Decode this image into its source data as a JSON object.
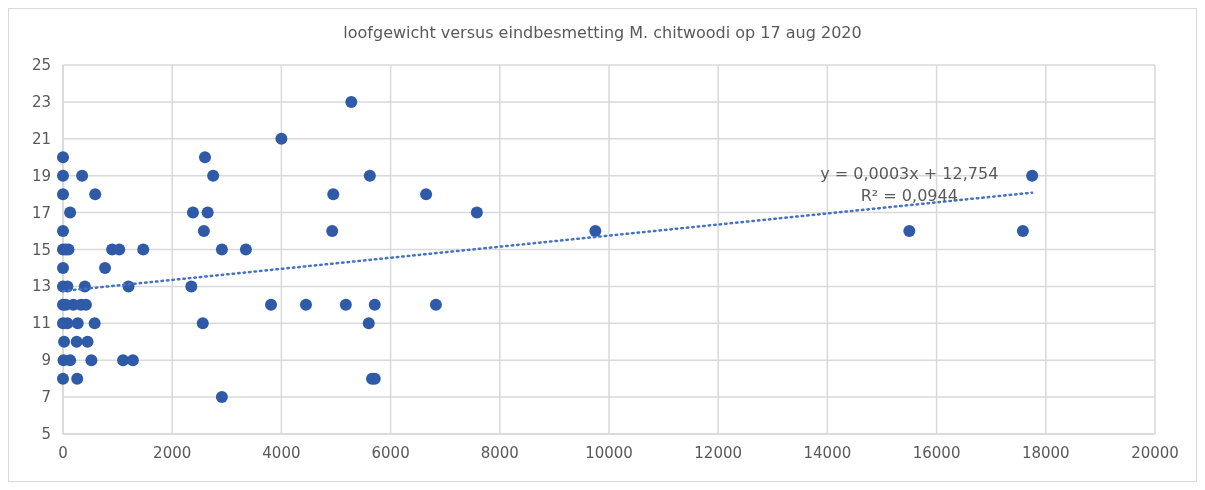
{
  "chart_data": {
    "type": "scatter",
    "title": "loofgewicht versus eindbesmetting M. chitwoodi op 17 aug 2020",
    "xlim": [
      0,
      20000
    ],
    "xticks": [
      0,
      2000,
      4000,
      6000,
      8000,
      10000,
      12000,
      14000,
      16000,
      18000,
      20000
    ],
    "ylim": [
      5,
      25
    ],
    "yticks": [
      5,
      7,
      9,
      11,
      13,
      15,
      17,
      19,
      21,
      23,
      25
    ],
    "grid": true,
    "marker": "circle",
    "series": [
      {
        "color": "#2f5aa8",
        "x": [
          0,
          0,
          350,
          0,
          590,
          130,
          0,
          0,
          50,
          100,
          900,
          1030,
          1470,
          0,
          770,
          0,
          80,
          400,
          1200,
          2350,
          0,
          50,
          190,
          330,
          420,
          0,
          80,
          270,
          580,
          2560,
          20,
          250,
          450,
          10,
          130,
          520,
          1100,
          1280,
          0,
          260,
          2600,
          2750,
          2380,
          2650,
          2580,
          2910,
          3350,
          2910,
          3810,
          4000,
          4450,
          4930,
          4950,
          5180,
          5280,
          5600,
          5620,
          5660,
          5710,
          5710,
          6650,
          6830,
          7580,
          9750,
          15500,
          17580,
          17750
        ],
        "values": [
          20,
          19,
          19,
          18,
          18,
          17,
          16,
          15,
          15,
          15,
          15,
          15,
          15,
          14,
          14,
          13,
          13,
          13,
          13,
          13,
          12,
          12,
          12,
          12,
          12,
          11,
          11,
          11,
          11,
          11,
          10,
          10,
          10,
          9,
          9,
          9,
          9,
          9,
          8,
          8,
          20,
          19,
          17,
          17,
          16,
          15,
          15,
          7,
          12,
          21,
          12,
          16,
          18,
          12,
          23,
          11,
          19,
          8,
          8,
          12,
          18,
          12,
          17,
          16,
          16,
          16,
          19
        ]
      },
      {
        "type": "line",
        "color": "#4472c4",
        "line_style": "dotted",
        "marker": "none",
        "x": [
          0,
          17750
        ],
        "values": [
          12.75,
          18.08
        ]
      }
    ],
    "annotations": [
      "y = 0,0003x + 12,754",
      "R² = 0,0944"
    ]
  }
}
